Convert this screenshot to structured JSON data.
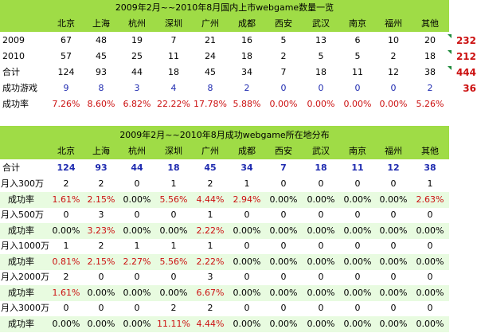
{
  "table1": {
    "title": "2009年2月~~2010年8月国内上市webgame数量一览",
    "cities": [
      "北京",
      "上海",
      "杭州",
      "深圳",
      "广州",
      "成都",
      "西安",
      "武汉",
      "南京",
      "福州",
      "其他"
    ],
    "rows": [
      {
        "label": "2009",
        "values": [
          "67",
          "48",
          "19",
          "7",
          "21",
          "16",
          "5",
          "13",
          "6",
          "10",
          "20"
        ],
        "side": "232"
      },
      {
        "label": "2010",
        "values": [
          "57",
          "45",
          "25",
          "11",
          "24",
          "18",
          "2",
          "5",
          "5",
          "2",
          "18"
        ],
        "side": "212"
      },
      {
        "label": "合计",
        "values": [
          "124",
          "93",
          "44",
          "18",
          "45",
          "34",
          "7",
          "18",
          "11",
          "12",
          "38"
        ],
        "side": "444"
      },
      {
        "label": "成功游戏",
        "values": [
          "9",
          "8",
          "3",
          "4",
          "8",
          "2",
          "0",
          "0",
          "0",
          "0",
          "2"
        ],
        "side": "36"
      },
      {
        "label": "成功率",
        "values": [
          "7.26%",
          "8.60%",
          "6.82%",
          "22.22%",
          "17.78%",
          "5.88%",
          "0.00%",
          "0.00%",
          "0.00%",
          "0.00%",
          "5.26%"
        ],
        "side": ""
      }
    ]
  },
  "table2": {
    "title": "2009年2月~~2010年8月成功webgame所在地分布",
    "cities": [
      "北京",
      "上海",
      "杭州",
      "深圳",
      "广州",
      "成都",
      "西安",
      "武汉",
      "南京",
      "福州",
      "其他"
    ],
    "total": {
      "label": "合计",
      "values": [
        "124",
        "93",
        "44",
        "18",
        "45",
        "34",
        "7",
        "18",
        "11",
        "12",
        "38"
      ]
    },
    "rows": [
      {
        "label": "月入300万",
        "values": [
          "2",
          "2",
          "0",
          "1",
          "2",
          "1",
          "0",
          "0",
          "0",
          "0",
          "1"
        ]
      },
      {
        "label": "成功率",
        "values": [
          "1.61%",
          "2.15%",
          "0.00%",
          "5.56%",
          "4.44%",
          "2.94%",
          "0.00%",
          "0.00%",
          "0.00%",
          "0.00%",
          "2.63%"
        ]
      },
      {
        "label": "月入500万",
        "values": [
          "0",
          "3",
          "0",
          "0",
          "1",
          "0",
          "0",
          "0",
          "0",
          "0",
          "0"
        ]
      },
      {
        "label": "成功率",
        "values": [
          "0.00%",
          "3.23%",
          "0.00%",
          "0.00%",
          "2.22%",
          "0.00%",
          "0.00%",
          "0.00%",
          "0.00%",
          "0.00%",
          "0.00%"
        ]
      },
      {
        "label": "月入1000万",
        "values": [
          "1",
          "2",
          "1",
          "1",
          "1",
          "0",
          "0",
          "0",
          "0",
          "0",
          "0"
        ]
      },
      {
        "label": "成功率",
        "values": [
          "0.81%",
          "2.15%",
          "2.27%",
          "5.56%",
          "2.22%",
          "0.00%",
          "0.00%",
          "0.00%",
          "0.00%",
          "0.00%",
          "0.00%"
        ]
      },
      {
        "label": "月入2000万",
        "values": [
          "2",
          "0",
          "0",
          "0",
          "3",
          "0",
          "0",
          "0",
          "0",
          "0",
          "0"
        ]
      },
      {
        "label": "成功率",
        "values": [
          "1.61%",
          "0.00%",
          "0.00%",
          "0.00%",
          "6.67%",
          "0.00%",
          "0.00%",
          "0.00%",
          "0.00%",
          "0.00%",
          "0.00%"
        ]
      },
      {
        "label": "月入3000万",
        "values": [
          "0",
          "0",
          "0",
          "2",
          "2",
          "0",
          "0",
          "0",
          "0",
          "0",
          "0"
        ]
      },
      {
        "label": "成功率",
        "values": [
          "0.00%",
          "0.00%",
          "0.00%",
          "11.11%",
          "4.44%",
          "0.00%",
          "0.00%",
          "0.00%",
          "0.00%",
          "0.00%",
          "0.00%"
        ]
      }
    ]
  },
  "colors": {
    "header_green": "#9fdc46",
    "row_alt": "#e8fbe0",
    "red": "#cc1111",
    "blue": "#1f2bb0",
    "marker": "#1d8a3a"
  }
}
